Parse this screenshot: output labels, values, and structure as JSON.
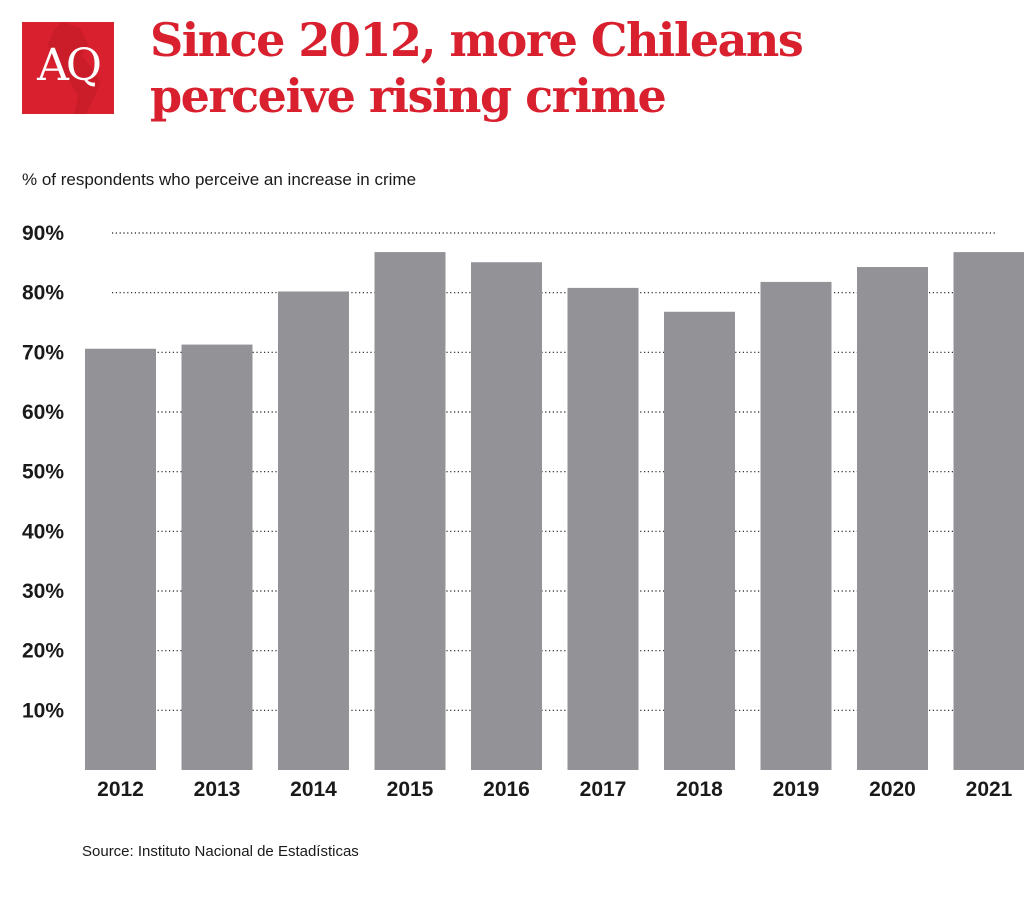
{
  "logo": {
    "text": "AQ",
    "background": "#d8202e"
  },
  "title_lines": [
    "Since 2012, more Chileans",
    "perceive rising crime"
  ],
  "subtitle": "% of respondents who perceive an increase in crime",
  "source": "Source: Instituto Nacional de Estadísticas",
  "colors": {
    "accent": "#d8202e",
    "bar": "#939397",
    "text": "#1a1a1a",
    "grid": "#1a1a1a"
  },
  "chart_data": {
    "type": "bar",
    "title": "Since 2012, more Chileans perceive rising crime",
    "ylabel": "% of respondents who perceive an increase in crime",
    "xlabel": "",
    "categories": [
      "2012",
      "2013",
      "2014",
      "2015",
      "2016",
      "2017",
      "2018",
      "2019",
      "2020",
      "2021"
    ],
    "values": [
      70.6,
      71.3,
      80.2,
      86.8,
      85.1,
      80.8,
      76.8,
      81.8,
      84.3,
      86.8
    ],
    "ylim": [
      0,
      90
    ],
    "yticks": [
      10,
      20,
      30,
      40,
      50,
      60,
      70,
      80,
      90
    ],
    "ytick_labels": [
      "10%",
      "20%",
      "30%",
      "40%",
      "50%",
      "60%",
      "70%",
      "80%",
      "90%"
    ],
    "grid": "horizontal dotted",
    "legend": "none"
  }
}
